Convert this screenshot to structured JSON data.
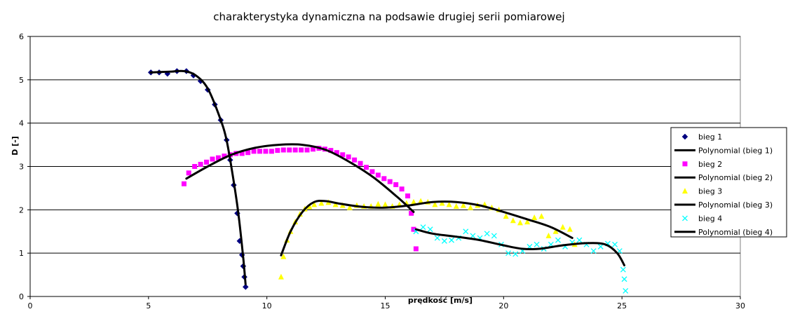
{
  "chart_data": {
    "type": "scatter",
    "title": "charakterystyka dynamiczna na podsawie drugiej serii pomiarowej",
    "xlabel": "prędkość [m/s]",
    "ylabel": "D [-]",
    "xlim": [
      0,
      30
    ],
    "ylim": [
      0,
      6
    ],
    "xticks": [
      0,
      5,
      10,
      15,
      20,
      25,
      30
    ],
    "yticks": [
      0,
      1,
      2,
      3,
      4,
      5,
      6
    ],
    "grid": "horizontal",
    "legend_position": "right",
    "colors": {
      "bieg1": "#000080",
      "bieg2": "#ff00ff",
      "bieg3": "#ffff00",
      "bieg4": "#00ffff",
      "trend": "#000000"
    },
    "series": [
      {
        "name": "bieg 1",
        "marker": "diamond",
        "color": "#000080",
        "x": [
          5.1,
          5.45,
          5.8,
          6.2,
          6.6,
          6.9,
          7.2,
          7.5,
          7.8,
          8.05,
          8.3,
          8.45,
          8.6,
          8.75,
          8.85,
          8.95,
          9.0,
          9.05,
          9.1
        ],
        "y": [
          5.17,
          5.17,
          5.14,
          5.2,
          5.2,
          5.1,
          4.97,
          4.77,
          4.43,
          4.07,
          3.61,
          3.15,
          2.57,
          1.92,
          1.28,
          0.96,
          0.7,
          0.45,
          0.22
        ]
      },
      {
        "name": "Polynomial (bieg 1)",
        "type": "line",
        "color": "#000000",
        "x": [
          5.1,
          5.5,
          6.0,
          6.5,
          7.0,
          7.5,
          8.0,
          8.3,
          8.6,
          8.8,
          9.0,
          9.1
        ],
        "y": [
          5.17,
          5.18,
          5.19,
          5.2,
          5.1,
          4.8,
          4.15,
          3.6,
          2.65,
          1.9,
          0.9,
          0.28
        ]
      },
      {
        "name": "bieg 2",
        "marker": "square",
        "color": "#ff00ff",
        "x": [
          6.5,
          6.7,
          6.95,
          7.2,
          7.45,
          7.7,
          7.95,
          8.2,
          8.45,
          8.7,
          8.95,
          9.2,
          9.45,
          9.7,
          9.95,
          10.2,
          10.45,
          10.7,
          10.95,
          11.2,
          11.45,
          11.7,
          11.95,
          12.2,
          12.45,
          12.7,
          12.95,
          13.2,
          13.45,
          13.7,
          13.95,
          14.2,
          14.45,
          14.7,
          14.95,
          15.2,
          15.45,
          15.7,
          15.95,
          16.1,
          16.2,
          16.3
        ],
        "y": [
          2.6,
          2.85,
          3.0,
          3.05,
          3.1,
          3.17,
          3.2,
          3.24,
          3.27,
          3.3,
          3.3,
          3.32,
          3.35,
          3.35,
          3.35,
          3.35,
          3.37,
          3.38,
          3.38,
          3.38,
          3.38,
          3.38,
          3.4,
          3.42,
          3.4,
          3.37,
          3.32,
          3.27,
          3.22,
          3.15,
          3.07,
          2.98,
          2.88,
          2.8,
          2.72,
          2.65,
          2.58,
          2.48,
          2.32,
          1.92,
          1.55,
          1.1
        ]
      },
      {
        "name": "Polynomial (bieg 2)",
        "type": "line",
        "color": "#000000",
        "x": [
          6.6,
          7.5,
          8.5,
          9.5,
          10.5,
          11.5,
          12.5,
          13.5,
          14.5,
          15.5,
          16.2
        ],
        "y": [
          2.72,
          3.0,
          3.27,
          3.43,
          3.5,
          3.5,
          3.38,
          3.1,
          2.75,
          2.3,
          1.95
        ]
      },
      {
        "name": "bieg 3",
        "marker": "triangle",
        "color": "#ffff00",
        "x": [
          10.6,
          10.7,
          10.85,
          11.0,
          11.2,
          11.4,
          11.6,
          11.8,
          12.0,
          12.3,
          12.6,
          12.9,
          13.2,
          13.5,
          13.8,
          14.1,
          14.4,
          14.7,
          15.0,
          15.3,
          15.6,
          15.9,
          16.2,
          16.5,
          16.8,
          17.1,
          17.4,
          17.7,
          18.0,
          18.3,
          18.6,
          18.9,
          19.2,
          19.5,
          19.8,
          20.1,
          20.4,
          20.7,
          21.0,
          21.3,
          21.6,
          21.9,
          22.2,
          22.5,
          22.8,
          23.0
        ],
        "y": [
          0.45,
          0.92,
          1.3,
          1.5,
          1.72,
          1.9,
          2.02,
          2.07,
          2.12,
          2.15,
          2.17,
          2.12,
          2.1,
          2.05,
          2.1,
          2.08,
          2.08,
          2.13,
          2.12,
          2.08,
          2.12,
          2.15,
          2.18,
          2.2,
          2.18,
          2.12,
          2.15,
          2.12,
          2.08,
          2.1,
          2.05,
          2.1,
          2.12,
          2.05,
          2.0,
          1.85,
          1.75,
          1.7,
          1.72,
          1.82,
          1.85,
          1.4,
          1.5,
          1.6,
          1.55,
          1.2
        ]
      },
      {
        "name": "Polynomial (bieg 3)",
        "type": "line",
        "color": "#000000",
        "x": [
          10.6,
          11.0,
          11.5,
          12.0,
          12.5,
          13.0,
          14.0,
          15.0,
          16.0,
          17.0,
          18.0,
          19.0,
          20.0,
          21.0,
          22.0,
          22.9
        ],
        "y": [
          0.95,
          1.5,
          1.95,
          2.18,
          2.2,
          2.15,
          2.07,
          2.05,
          2.1,
          2.18,
          2.18,
          2.1,
          1.95,
          1.78,
          1.6,
          1.35
        ]
      },
      {
        "name": "bieg 4",
        "marker": "x",
        "color": "#00ffff",
        "x": [
          16.3,
          16.6,
          16.9,
          17.2,
          17.5,
          17.8,
          18.1,
          18.4,
          18.7,
          19.0,
          19.3,
          19.6,
          19.9,
          20.2,
          20.5,
          20.8,
          21.1,
          21.4,
          21.7,
          22.0,
          22.3,
          22.6,
          22.9,
          23.2,
          23.5,
          23.8,
          24.1,
          24.4,
          24.7,
          24.9,
          25.05,
          25.1,
          25.15
        ],
        "y": [
          1.5,
          1.6,
          1.55,
          1.35,
          1.28,
          1.3,
          1.35,
          1.5,
          1.4,
          1.35,
          1.45,
          1.4,
          1.2,
          1.0,
          0.98,
          1.05,
          1.15,
          1.2,
          1.1,
          1.2,
          1.3,
          1.15,
          1.25,
          1.3,
          1.2,
          1.05,
          1.15,
          1.22,
          1.2,
          1.05,
          0.62,
          0.4,
          0.13
        ]
      },
      {
        "name": "Polynomial (bieg 4)",
        "type": "line",
        "color": "#000000",
        "x": [
          16.3,
          17.0,
          18.0,
          19.0,
          20.0,
          20.8,
          21.5,
          22.5,
          23.5,
          24.3,
          24.8,
          25.1
        ],
        "y": [
          1.55,
          1.45,
          1.38,
          1.3,
          1.18,
          1.1,
          1.1,
          1.18,
          1.23,
          1.2,
          1.0,
          0.72
        ]
      }
    ]
  }
}
